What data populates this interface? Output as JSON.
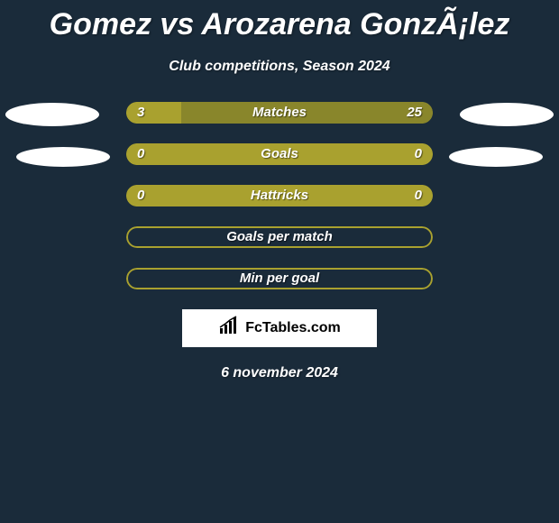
{
  "title": "Gomez vs Arozarena GonzÃ¡lez",
  "subtitle": "Club competitions, Season 2024",
  "date": "6 november 2024",
  "brand": "FcTables.com",
  "colors": {
    "bg": "#1a2b3a",
    "accent": "#a9a12f",
    "white": "#ffffff"
  },
  "bars": [
    {
      "label": "Matches",
      "left": "3",
      "right": "25",
      "left_pct": 18,
      "right_pct": 82,
      "fill_mode": "split"
    },
    {
      "label": "Goals",
      "left": "0",
      "right": "0",
      "left_pct": 100,
      "right_pct": 0,
      "fill_mode": "full"
    },
    {
      "label": "Hattricks",
      "left": "0",
      "right": "0",
      "left_pct": 100,
      "right_pct": 0,
      "fill_mode": "full"
    },
    {
      "label": "Goals per match",
      "left": "",
      "right": "",
      "left_pct": 0,
      "right_pct": 0,
      "fill_mode": "outline"
    },
    {
      "label": "Min per goal",
      "left": "",
      "right": "",
      "left_pct": 0,
      "right_pct": 0,
      "fill_mode": "outline"
    }
  ]
}
